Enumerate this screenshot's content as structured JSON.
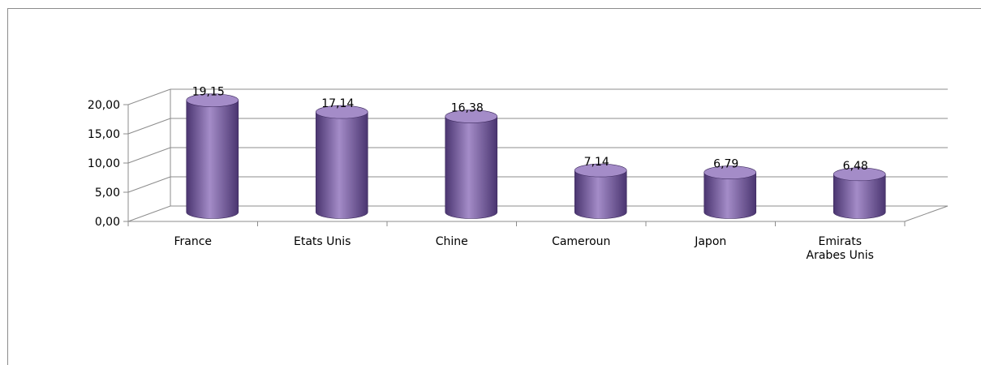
{
  "chart_data": {
    "type": "bar",
    "style": "3d-cylinder",
    "categories": [
      "France",
      "Etats Unis",
      "Chine",
      "Cameroun",
      "Japon",
      "Emirats Arabes Unis"
    ],
    "category_lines": [
      [
        "France"
      ],
      [
        "Etats Unis"
      ],
      [
        "Chine"
      ],
      [
        "Cameroun"
      ],
      [
        "Japon"
      ],
      [
        "Emirats",
        "Arabes Unis"
      ]
    ],
    "values": [
      19.15,
      17.14,
      16.38,
      7.14,
      6.79,
      6.48
    ],
    "value_labels": [
      "19,15",
      "17,14",
      "16,38",
      "7,14",
      "6,79",
      "6,48"
    ],
    "title": "",
    "xlabel": "",
    "ylabel": "",
    "ylim": [
      0,
      20
    ],
    "yticks": [
      0,
      5,
      10,
      15,
      20
    ],
    "ytick_labels": [
      "0,00",
      "5,00",
      "10,00",
      "15,00",
      "20,00"
    ],
    "grid": true,
    "legend": "none",
    "bar_color": "#8a6bb0",
    "bar_color_dark": "#4a3570",
    "bar_color_light": "#a48cc8"
  }
}
